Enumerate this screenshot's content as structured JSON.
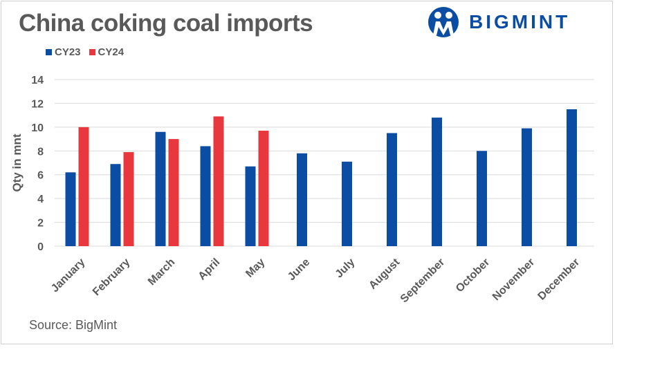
{
  "chart_data": {
    "type": "bar",
    "title": "China coking coal imports",
    "ylabel": "Qty in mnt",
    "xlabel": "",
    "categories": [
      "January",
      "February",
      "March",
      "April",
      "May",
      "June",
      "July",
      "August",
      "September",
      "October",
      "November",
      "December"
    ],
    "series": [
      {
        "name": "CY23",
        "color": "#0b4da2",
        "values": [
          6.2,
          6.9,
          9.6,
          8.4,
          6.7,
          7.8,
          7.1,
          9.5,
          10.8,
          8.0,
          9.9,
          11.5
        ]
      },
      {
        "name": "CY24",
        "color": "#e8383d",
        "values": [
          10.0,
          7.9,
          9.0,
          10.9,
          9.7,
          null,
          null,
          null,
          null,
          null,
          null,
          null
        ]
      }
    ],
    "ylim": [
      0,
      14
    ],
    "yticks": [
      0,
      2,
      4,
      6,
      8,
      10,
      12,
      14
    ],
    "grid": true,
    "legend": "top-left"
  },
  "brand": {
    "name": "BIGMINT",
    "color": "#0b4da2"
  },
  "source": "Source: BigMint"
}
